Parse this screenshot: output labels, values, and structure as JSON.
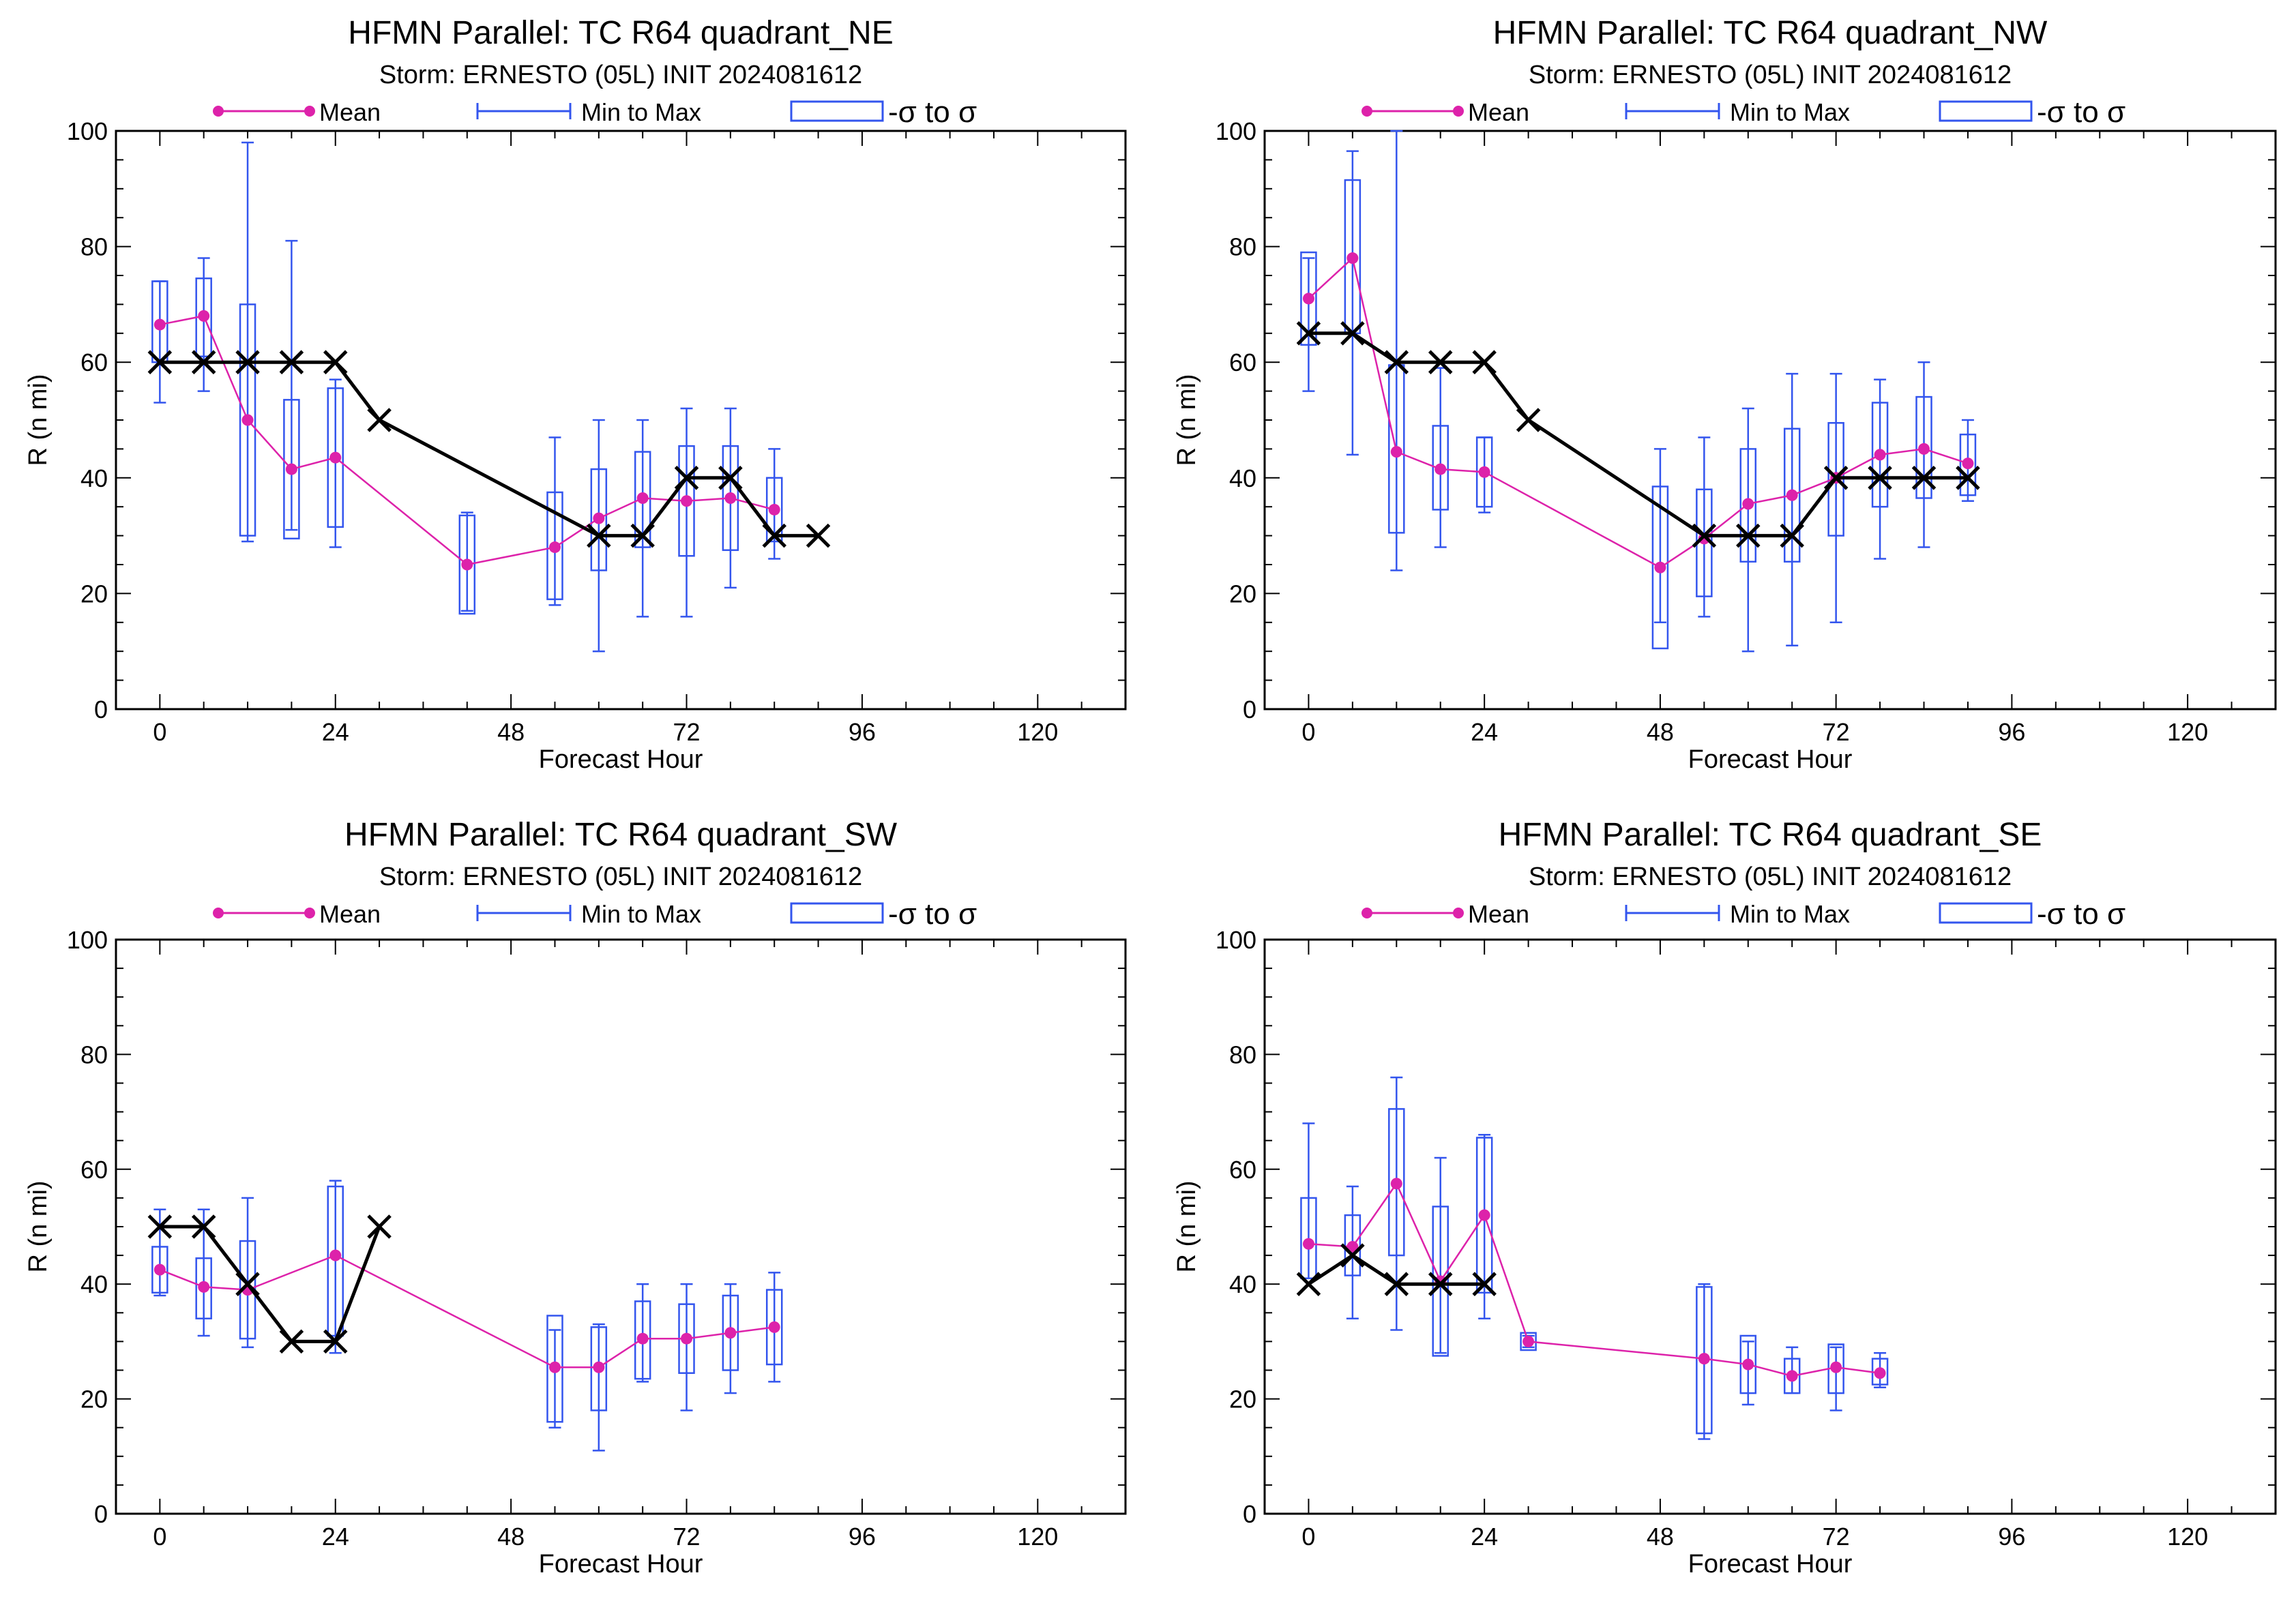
{
  "legend": {
    "mean": "Mean",
    "minmax": "Min to Max",
    "sigma": "-σ to σ"
  },
  "colors": {
    "mean": "#dd22aa",
    "box": "#3355ee",
    "truth": "#000000"
  },
  "chart_data": [
    {
      "type": "box",
      "title": "HFMN Parallel: TC  R64 quadrant_NE",
      "subtitle": "Storm: ERNESTO (05L) INIT 2024081612",
      "xlabel": "Forecast Hour",
      "ylabel": "R (n mi)",
      "xlim": [
        -6,
        132
      ],
      "ylim": [
        0,
        100
      ],
      "xticks": [
        0,
        24,
        48,
        72,
        96,
        120
      ],
      "yticks": [
        0,
        20,
        40,
        60,
        80,
        100
      ],
      "boxes": [
        {
          "x": 0,
          "min": 53,
          "max": 74,
          "lo": 60,
          "hi": 74,
          "mean": 66.5
        },
        {
          "x": 6,
          "min": 55,
          "max": 78,
          "lo": 61,
          "hi": 74.5,
          "mean": 68
        },
        {
          "x": 12,
          "min": 29,
          "max": 98,
          "lo": 30,
          "hi": 70,
          "mean": 50
        },
        {
          "x": 18,
          "min": 31,
          "max": 81,
          "lo": 29.5,
          "hi": 53.5,
          "mean": 41.5
        },
        {
          "x": 24,
          "min": 28,
          "max": 57,
          "lo": 31.5,
          "hi": 55.5,
          "mean": 43.5
        },
        {
          "x": 42,
          "min": 17,
          "max": 34,
          "lo": 16.5,
          "hi": 33.5,
          "mean": 25
        },
        {
          "x": 54,
          "min": 18,
          "max": 47,
          "lo": 19,
          "hi": 37.5,
          "mean": 28
        },
        {
          "x": 60,
          "min": 10,
          "max": 50,
          "lo": 24,
          "hi": 41.5,
          "mean": 33
        },
        {
          "x": 66,
          "min": 16,
          "max": 50,
          "lo": 28,
          "hi": 44.5,
          "mean": 36.5
        },
        {
          "x": 72,
          "min": 16,
          "max": 52,
          "lo": 26.5,
          "hi": 45.5,
          "mean": 36
        },
        {
          "x": 78,
          "min": 21,
          "max": 52,
          "lo": 27.5,
          "hi": 45.5,
          "mean": 36.5
        },
        {
          "x": 84,
          "min": 26,
          "max": 45,
          "lo": 29,
          "hi": 40,
          "mean": 34.5
        }
      ],
      "truth_segments": [
        [
          [
            0,
            60
          ],
          [
            6,
            60
          ],
          [
            12,
            60
          ],
          [
            18,
            60
          ],
          [
            24,
            60
          ],
          [
            30,
            50
          ],
          [
            60,
            30
          ],
          [
            66,
            30
          ],
          [
            72,
            40
          ],
          [
            78,
            40
          ],
          [
            84,
            30
          ],
          [
            90,
            30
          ]
        ]
      ]
    },
    {
      "type": "box",
      "title": "HFMN Parallel: TC  R64 quadrant_NW",
      "subtitle": "Storm: ERNESTO (05L) INIT 2024081612",
      "xlabel": "Forecast Hour",
      "ylabel": "R (n mi)",
      "xlim": [
        -6,
        132
      ],
      "ylim": [
        0,
        100
      ],
      "xticks": [
        0,
        24,
        48,
        72,
        96,
        120
      ],
      "yticks": [
        0,
        20,
        40,
        60,
        80,
        100
      ],
      "boxes": [
        {
          "x": 0,
          "min": 55,
          "max": 78,
          "lo": 63,
          "hi": 79,
          "mean": 71
        },
        {
          "x": 6,
          "min": 44,
          "max": 96.5,
          "lo": 65,
          "hi": 91.5,
          "mean": 78
        },
        {
          "x": 12,
          "min": 24,
          "max": 100,
          "lo": 30.5,
          "hi": 59.5,
          "mean": 44.5
        },
        {
          "x": 18,
          "min": 28,
          "max": 59,
          "lo": 34.5,
          "hi": 49,
          "mean": 41.5
        },
        {
          "x": 24,
          "min": 34,
          "max": 47,
          "lo": 35,
          "hi": 47,
          "mean": 41
        },
        {
          "x": 48,
          "min": 15,
          "max": 45,
          "lo": 10.5,
          "hi": 38.5,
          "mean": 24.5
        },
        {
          "x": 54,
          "min": 16,
          "max": 47,
          "lo": 19.5,
          "hi": 38,
          "mean": 29.5
        },
        {
          "x": 60,
          "min": 10,
          "max": 52,
          "lo": 25.5,
          "hi": 45,
          "mean": 35.5
        },
        {
          "x": 66,
          "min": 11,
          "max": 58,
          "lo": 25.5,
          "hi": 48.5,
          "mean": 37
        },
        {
          "x": 72,
          "min": 15,
          "max": 58,
          "lo": 30,
          "hi": 49.5,
          "mean": 40
        },
        {
          "x": 78,
          "min": 26,
          "max": 57,
          "lo": 35,
          "hi": 53,
          "mean": 44
        },
        {
          "x": 84,
          "min": 28,
          "max": 60,
          "lo": 36.5,
          "hi": 54,
          "mean": 45
        },
        {
          "x": 90,
          "min": 36,
          "max": 50,
          "lo": 37,
          "hi": 47.5,
          "mean": 42.5
        }
      ],
      "truth_segments": [
        [
          [
            0,
            65
          ],
          [
            6,
            65
          ],
          [
            12,
            60
          ],
          [
            18,
            60
          ],
          [
            24,
            60
          ],
          [
            30,
            50
          ],
          [
            54,
            30
          ],
          [
            60,
            30
          ],
          [
            66,
            30
          ],
          [
            72,
            40
          ],
          [
            78,
            40
          ],
          [
            84,
            40
          ],
          [
            90,
            40
          ]
        ]
      ]
    },
    {
      "type": "box",
      "title": "HFMN Parallel: TC  R64 quadrant_SW",
      "subtitle": "Storm: ERNESTO (05L) INIT 2024081612",
      "xlabel": "Forecast Hour",
      "ylabel": "R (n mi)",
      "xlim": [
        -6,
        132
      ],
      "ylim": [
        0,
        100
      ],
      "xticks": [
        0,
        24,
        48,
        72,
        96,
        120
      ],
      "yticks": [
        0,
        20,
        40,
        60,
        80,
        100
      ],
      "boxes": [
        {
          "x": 0,
          "min": 38,
          "max": 53,
          "lo": 38.5,
          "hi": 46.5,
          "mean": 42.5
        },
        {
          "x": 6,
          "min": 31,
          "max": 53,
          "lo": 34,
          "hi": 44.5,
          "mean": 39.5
        },
        {
          "x": 12,
          "min": 29,
          "max": 55,
          "lo": 30.5,
          "hi": 47.5,
          "mean": 39
        },
        {
          "x": 24,
          "min": 28,
          "max": 58,
          "lo": 31,
          "hi": 57,
          "mean": 45
        },
        {
          "x": 54,
          "min": 15,
          "max": 32,
          "lo": 16,
          "hi": 34.5,
          "mean": 25.5
        },
        {
          "x": 60,
          "min": 11,
          "max": 33,
          "lo": 18,
          "hi": 32.5,
          "mean": 25.5
        },
        {
          "x": 66,
          "min": 23,
          "max": 40,
          "lo": 23.5,
          "hi": 37,
          "mean": 30.5
        },
        {
          "x": 72,
          "min": 18,
          "max": 40,
          "lo": 24.5,
          "hi": 36.5,
          "mean": 30.5
        },
        {
          "x": 78,
          "min": 21,
          "max": 40,
          "lo": 25,
          "hi": 38,
          "mean": 31.5
        },
        {
          "x": 84,
          "min": 23,
          "max": 42,
          "lo": 26,
          "hi": 39,
          "mean": 32.5
        }
      ],
      "truth_segments": [
        [
          [
            0,
            50
          ],
          [
            6,
            50
          ],
          [
            12,
            40
          ],
          [
            18,
            30
          ],
          [
            24,
            30
          ],
          [
            30,
            50
          ]
        ]
      ]
    },
    {
      "type": "box",
      "title": "HFMN Parallel: TC  R64 quadrant_SE",
      "subtitle": "Storm: ERNESTO (05L) INIT 2024081612",
      "xlabel": "Forecast Hour",
      "ylabel": "R (n mi)",
      "xlim": [
        -6,
        132
      ],
      "ylim": [
        0,
        100
      ],
      "xticks": [
        0,
        24,
        48,
        72,
        96,
        120
      ],
      "yticks": [
        0,
        20,
        40,
        60,
        80,
        100
      ],
      "boxes": [
        {
          "x": 0,
          "min": 41,
          "max": 68,
          "lo": 41,
          "hi": 55,
          "mean": 47
        },
        {
          "x": 6,
          "min": 34,
          "max": 57,
          "lo": 41.5,
          "hi": 52,
          "mean": 46.5
        },
        {
          "x": 12,
          "min": 32,
          "max": 76,
          "lo": 45,
          "hi": 70.5,
          "mean": 57.5
        },
        {
          "x": 18,
          "min": 28,
          "max": 62,
          "lo": 27.5,
          "hi": 53.5,
          "mean": 40.5
        },
        {
          "x": 24,
          "min": 34,
          "max": 66,
          "lo": 38.5,
          "hi": 65.5,
          "mean": 52
        },
        {
          "x": 30,
          "min": 29,
          "max": 31,
          "lo": 28.5,
          "hi": 31.5,
          "mean": 30
        },
        {
          "x": 54,
          "min": 13,
          "max": 40,
          "lo": 14,
          "hi": 39.5,
          "mean": 27
        },
        {
          "x": 60,
          "min": 19,
          "max": 30,
          "lo": 21,
          "hi": 31,
          "mean": 26
        },
        {
          "x": 66,
          "min": 21,
          "max": 29,
          "lo": 21,
          "hi": 27,
          "mean": 24
        },
        {
          "x": 72,
          "min": 18,
          "max": 29,
          "lo": 21,
          "hi": 29.5,
          "mean": 25.5
        },
        {
          "x": 78,
          "min": 22,
          "max": 28,
          "lo": 22.5,
          "hi": 27,
          "mean": 24.5
        }
      ],
      "truth_segments": [
        [
          [
            0,
            40
          ],
          [
            6,
            45
          ],
          [
            12,
            40
          ],
          [
            18,
            40
          ],
          [
            24,
            40
          ]
        ]
      ]
    }
  ]
}
